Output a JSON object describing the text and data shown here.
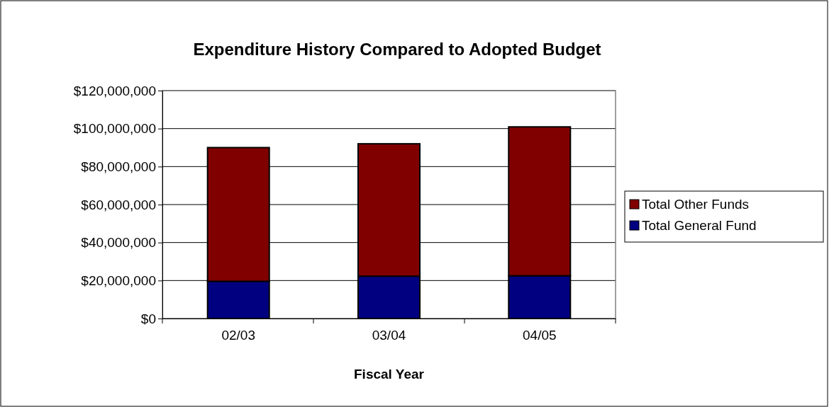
{
  "chart_data": {
    "type": "bar",
    "title": "Expenditure History Compared to Adopted Budget",
    "xlabel": "Fiscal Year",
    "categories": [
      "02/03",
      "03/04",
      "04/05"
    ],
    "stacked": true,
    "series": [
      {
        "name": "Total General Fund",
        "color": "#000080",
        "values": [
          19600000,
          22300000,
          22500000
        ]
      },
      {
        "name": "Total Other Funds",
        "color": "#800000",
        "values": [
          70400000,
          69700000,
          78400000
        ]
      }
    ],
    "ylim": [
      0,
      120000000
    ],
    "yticks": [
      {
        "value": 0,
        "label": "$0"
      },
      {
        "value": 20000000,
        "label": "$20,000,000"
      },
      {
        "value": 40000000,
        "label": "$40,000,000"
      },
      {
        "value": 60000000,
        "label": "$60,000,000"
      },
      {
        "value": 80000000,
        "label": "$80,000,000"
      },
      {
        "value": 100000000,
        "label": "$100,000,000"
      },
      {
        "value": 120000000,
        "label": "$120,000,000"
      }
    ],
    "grid": "y",
    "legend": "right"
  }
}
